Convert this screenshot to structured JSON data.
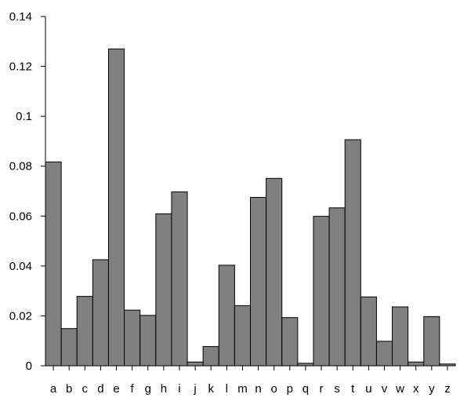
{
  "chart_data": {
    "type": "bar",
    "title": "",
    "xlabel": "",
    "ylabel": "",
    "ylim": [
      0,
      0.14
    ],
    "yticks": [
      {
        "value": 0,
        "label": "0"
      },
      {
        "value": 0.02,
        "label": "0.02"
      },
      {
        "value": 0.04,
        "label": "0.04"
      },
      {
        "value": 0.06,
        "label": "0.06"
      },
      {
        "value": 0.08,
        "label": "0.08"
      },
      {
        "value": 0.1,
        "label": "0.1"
      },
      {
        "value": 0.12,
        "label": "0.12"
      },
      {
        "value": 0.14,
        "label": "0.14"
      }
    ],
    "categories": [
      "a",
      "b",
      "c",
      "d",
      "e",
      "f",
      "g",
      "h",
      "i",
      "j",
      "k",
      "l",
      "m",
      "n",
      "o",
      "p",
      "q",
      "r",
      "s",
      "t",
      "u",
      "v",
      "w",
      "x",
      "y",
      "z"
    ],
    "values": [
      0.0817,
      0.0149,
      0.0278,
      0.0425,
      0.127,
      0.0223,
      0.0202,
      0.0609,
      0.0697,
      0.0015,
      0.0077,
      0.0403,
      0.0241,
      0.0675,
      0.0751,
      0.0193,
      0.001,
      0.0599,
      0.0633,
      0.0906,
      0.0276,
      0.0098,
      0.0236,
      0.0015,
      0.0197,
      0.0007
    ],
    "grid": false,
    "colors": {
      "bar_fill": "#808080",
      "bar_stroke": "#000000",
      "axis": "#000000"
    }
  }
}
